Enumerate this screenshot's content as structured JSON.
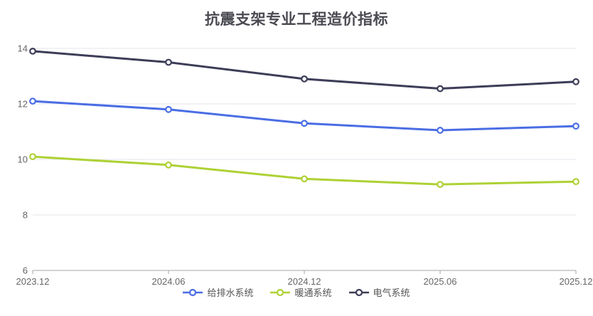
{
  "title": "抗震支架专业工程造价指标",
  "colors": {
    "title": "#4a4a52",
    "axis_label": "#666666",
    "grid_line": "#e6e6ec",
    "axis_line": "#a6a6a6",
    "legend_text": "#555555",
    "background": "#ffffff"
  },
  "chart_data": {
    "type": "line",
    "title": "抗震支架专业工程造价指标",
    "x": [
      "2023.12",
      "2024.06",
      "2024.12",
      "2025.06",
      "2025.12"
    ],
    "series": [
      {
        "id": "water-supply-drainage-system",
        "name": "给排水系统",
        "color": "#4a6de4",
        "values": [
          12.1,
          11.8,
          11.3,
          11.05,
          11.2
        ]
      },
      {
        "id": "hvac-system",
        "name": "暖通系统",
        "color": "#aed135",
        "values": [
          10.1,
          9.8,
          9.3,
          9.1,
          9.2
        ]
      },
      {
        "id": "electrical-system",
        "name": "电气系统",
        "color": "#3d3d58",
        "values": [
          13.9,
          13.5,
          12.9,
          12.55,
          12.8
        ]
      }
    ],
    "xlabel": "",
    "ylabel": "",
    "ylim": [
      6,
      14
    ],
    "yticks": [
      6,
      8,
      10,
      12,
      14
    ],
    "grid": true,
    "legend_position": "bottom",
    "marker": "empty-circle"
  }
}
